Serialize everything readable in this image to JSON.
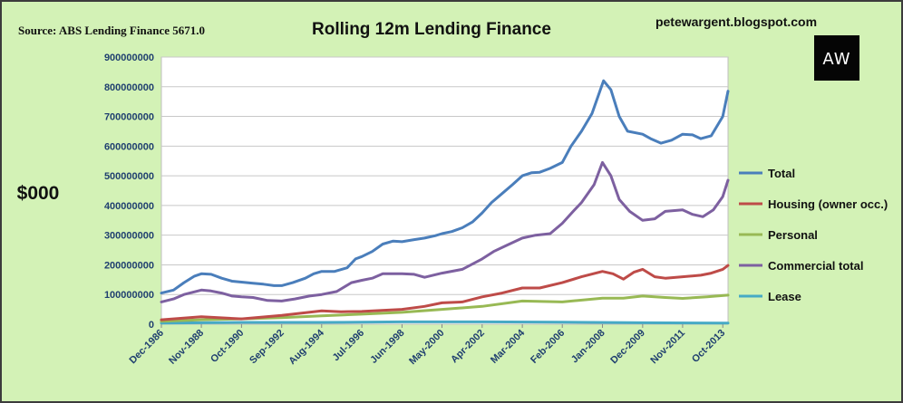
{
  "source": "Source: ABS Lending Finance 5671.0",
  "blog": "petewargent.blogspot.com",
  "logo": {
    "text": "AW",
    "icon": "aw-logo-icon"
  },
  "unit_label": "$000",
  "colors": {
    "background": "#d3f2b6",
    "plot_bg": "#ffffff",
    "grid": "#c8c8c8",
    "total": "#4a7ebb",
    "housing": "#be4b48",
    "personal": "#98b954",
    "commercial": "#7d60a0",
    "lease": "#46aac5"
  },
  "chart_data": {
    "type": "line",
    "title": "Rolling 12m Lending Finance",
    "xlabel": "",
    "ylabel": "",
    "ylim": [
      0,
      900000000
    ],
    "yticks": [
      0,
      100000000,
      200000000,
      300000000,
      400000000,
      500000000,
      600000000,
      700000000,
      800000000,
      900000000
    ],
    "ytick_labels": [
      "0",
      "100000000",
      "200000000",
      "300000000",
      "400000000",
      "500000000",
      "600000000",
      "700000000",
      "800000000",
      "900000000"
    ],
    "xlim": [
      1986.92,
      2014.0
    ],
    "xticks": [
      1986.92,
      1988.83,
      1990.75,
      1992.67,
      1994.58,
      1996.5,
      1998.42,
      2000.33,
      2002.25,
      2004.17,
      2006.08,
      2008.0,
      2009.92,
      2011.83,
      2013.75
    ],
    "xtick_labels": [
      "Dec-1986",
      "Nov-1988",
      "Oct-1990",
      "Sep-1992",
      "Aug-1994",
      "Jul-1996",
      "Jun-1998",
      "May-2000",
      "Apr-2002",
      "Mar-2004",
      "Feb-2006",
      "Jan-2008",
      "Dec-2009",
      "Nov-2011",
      "Oct-2013"
    ],
    "grid": "horizontal",
    "legend": "right",
    "series": [
      {
        "name": "Total",
        "key": "total",
        "points": [
          [
            1986.92,
            105000000
          ],
          [
            1987.5,
            115000000
          ],
          [
            1988.0,
            140000000
          ],
          [
            1988.5,
            162000000
          ],
          [
            1988.83,
            170000000
          ],
          [
            1989.3,
            168000000
          ],
          [
            1989.8,
            155000000
          ],
          [
            1990.3,
            145000000
          ],
          [
            1990.75,
            142000000
          ],
          [
            1991.3,
            138000000
          ],
          [
            1991.8,
            135000000
          ],
          [
            1992.3,
            130000000
          ],
          [
            1992.67,
            130000000
          ],
          [
            1993.2,
            140000000
          ],
          [
            1993.8,
            155000000
          ],
          [
            1994.2,
            170000000
          ],
          [
            1994.58,
            178000000
          ],
          [
            1995.2,
            178000000
          ],
          [
            1995.8,
            190000000
          ],
          [
            1996.2,
            220000000
          ],
          [
            1996.5,
            228000000
          ],
          [
            1997.0,
            245000000
          ],
          [
            1997.5,
            270000000
          ],
          [
            1998.0,
            280000000
          ],
          [
            1998.42,
            278000000
          ],
          [
            1999.0,
            285000000
          ],
          [
            1999.5,
            290000000
          ],
          [
            2000.0,
            298000000
          ],
          [
            2000.33,
            305000000
          ],
          [
            2000.8,
            312000000
          ],
          [
            2001.3,
            325000000
          ],
          [
            2001.8,
            345000000
          ],
          [
            2002.25,
            375000000
          ],
          [
            2002.7,
            410000000
          ],
          [
            2003.2,
            440000000
          ],
          [
            2003.7,
            470000000
          ],
          [
            2004.17,
            500000000
          ],
          [
            2004.6,
            510000000
          ],
          [
            2005.0,
            512000000
          ],
          [
            2005.5,
            525000000
          ],
          [
            2006.08,
            545000000
          ],
          [
            2006.5,
            600000000
          ],
          [
            2007.0,
            650000000
          ],
          [
            2007.5,
            710000000
          ],
          [
            2007.9,
            790000000
          ],
          [
            2008.05,
            820000000
          ],
          [
            2008.4,
            790000000
          ],
          [
            2008.8,
            700000000
          ],
          [
            2009.2,
            650000000
          ],
          [
            2009.92,
            640000000
          ],
          [
            2010.3,
            625000000
          ],
          [
            2010.8,
            610000000
          ],
          [
            2011.3,
            620000000
          ],
          [
            2011.83,
            640000000
          ],
          [
            2012.3,
            638000000
          ],
          [
            2012.7,
            625000000
          ],
          [
            2013.2,
            635000000
          ],
          [
            2013.75,
            700000000
          ],
          [
            2014.0,
            785000000
          ]
        ]
      },
      {
        "name": "Housing (owner occ.)",
        "key": "housing",
        "points": [
          [
            1986.92,
            15000000
          ],
          [
            1988.83,
            25000000
          ],
          [
            1990.75,
            18000000
          ],
          [
            1992.67,
            30000000
          ],
          [
            1994.58,
            45000000
          ],
          [
            1995.5,
            42000000
          ],
          [
            1996.5,
            43000000
          ],
          [
            1998.42,
            50000000
          ],
          [
            1999.5,
            60000000
          ],
          [
            2000.33,
            72000000
          ],
          [
            2001.3,
            75000000
          ],
          [
            2002.25,
            92000000
          ],
          [
            2003.2,
            105000000
          ],
          [
            2004.17,
            122000000
          ],
          [
            2005.0,
            122000000
          ],
          [
            2006.08,
            140000000
          ],
          [
            2007.0,
            160000000
          ],
          [
            2008.0,
            178000000
          ],
          [
            2008.5,
            170000000
          ],
          [
            2009.0,
            152000000
          ],
          [
            2009.5,
            175000000
          ],
          [
            2009.92,
            185000000
          ],
          [
            2010.5,
            160000000
          ],
          [
            2011.0,
            155000000
          ],
          [
            2011.83,
            160000000
          ],
          [
            2012.7,
            165000000
          ],
          [
            2013.2,
            172000000
          ],
          [
            2013.75,
            185000000
          ],
          [
            2014.0,
            198000000
          ]
        ]
      },
      {
        "name": "Personal",
        "key": "personal",
        "points": [
          [
            1986.92,
            10000000
          ],
          [
            1988.83,
            15000000
          ],
          [
            1990.75,
            18000000
          ],
          [
            1992.67,
            22000000
          ],
          [
            1994.58,
            28000000
          ],
          [
            1996.5,
            34000000
          ],
          [
            1998.42,
            40000000
          ],
          [
            2000.33,
            50000000
          ],
          [
            2002.25,
            60000000
          ],
          [
            2004.17,
            78000000
          ],
          [
            2006.08,
            75000000
          ],
          [
            2008.0,
            88000000
          ],
          [
            2009.0,
            88000000
          ],
          [
            2009.92,
            95000000
          ],
          [
            2011.0,
            90000000
          ],
          [
            2011.83,
            87000000
          ],
          [
            2013.0,
            92000000
          ],
          [
            2014.0,
            98000000
          ]
        ]
      },
      {
        "name": "Commercial total",
        "key": "commercial",
        "points": [
          [
            1986.92,
            75000000
          ],
          [
            1987.5,
            85000000
          ],
          [
            1988.0,
            100000000
          ],
          [
            1988.83,
            115000000
          ],
          [
            1989.3,
            112000000
          ],
          [
            1989.8,
            105000000
          ],
          [
            1990.3,
            95000000
          ],
          [
            1990.75,
            92000000
          ],
          [
            1991.3,
            90000000
          ],
          [
            1992.0,
            80000000
          ],
          [
            1992.67,
            78000000
          ],
          [
            1993.3,
            85000000
          ],
          [
            1994.0,
            95000000
          ],
          [
            1994.58,
            100000000
          ],
          [
            1995.3,
            110000000
          ],
          [
            1996.0,
            140000000
          ],
          [
            1996.5,
            148000000
          ],
          [
            1997.0,
            155000000
          ],
          [
            1997.5,
            170000000
          ],
          [
            1998.42,
            170000000
          ],
          [
            1999.0,
            168000000
          ],
          [
            1999.5,
            158000000
          ],
          [
            2000.33,
            172000000
          ],
          [
            2001.3,
            185000000
          ],
          [
            2002.25,
            220000000
          ],
          [
            2002.8,
            245000000
          ],
          [
            2003.4,
            265000000
          ],
          [
            2004.17,
            290000000
          ],
          [
            2004.8,
            300000000
          ],
          [
            2005.5,
            305000000
          ],
          [
            2006.08,
            340000000
          ],
          [
            2006.6,
            380000000
          ],
          [
            2007.0,
            410000000
          ],
          [
            2007.6,
            470000000
          ],
          [
            2008.0,
            545000000
          ],
          [
            2008.4,
            500000000
          ],
          [
            2008.8,
            420000000
          ],
          [
            2009.3,
            380000000
          ],
          [
            2009.92,
            350000000
          ],
          [
            2010.5,
            355000000
          ],
          [
            2011.0,
            380000000
          ],
          [
            2011.83,
            385000000
          ],
          [
            2012.3,
            370000000
          ],
          [
            2012.8,
            362000000
          ],
          [
            2013.3,
            385000000
          ],
          [
            2013.75,
            430000000
          ],
          [
            2014.0,
            485000000
          ]
        ]
      },
      {
        "name": "Lease",
        "key": "lease",
        "points": [
          [
            1986.92,
            4000000
          ],
          [
            1990.75,
            6000000
          ],
          [
            1994.58,
            6000000
          ],
          [
            1998.42,
            8000000
          ],
          [
            2002.25,
            8000000
          ],
          [
            2006.08,
            7000000
          ],
          [
            2009.92,
            5000000
          ],
          [
            2013.75,
            4000000
          ],
          [
            2014.0,
            4000000
          ]
        ]
      }
    ]
  }
}
